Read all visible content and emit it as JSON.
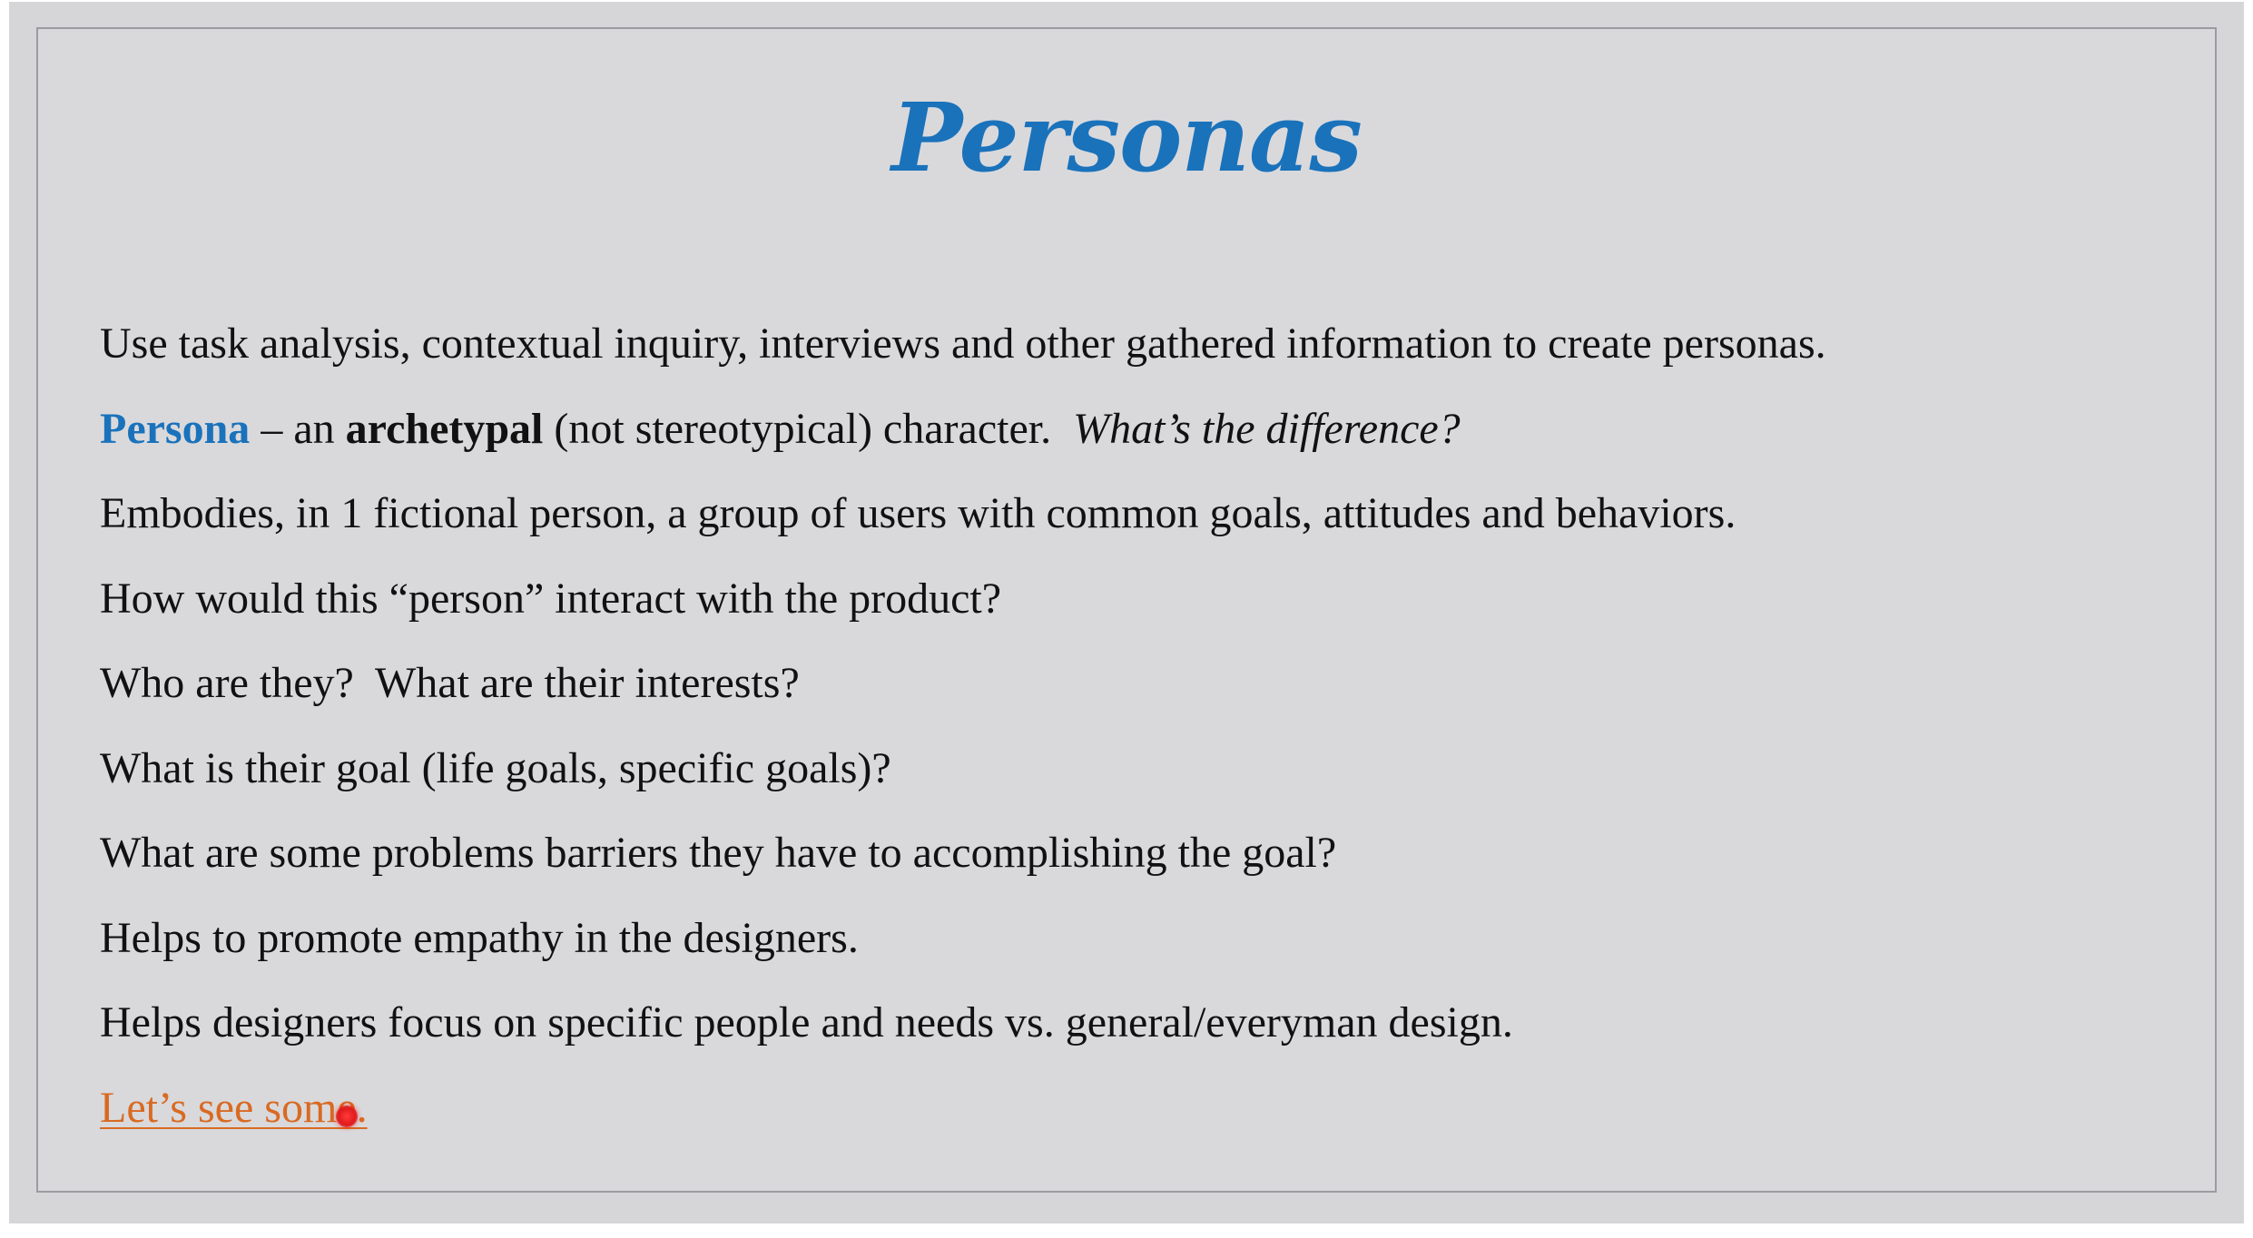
{
  "slide": {
    "title": "Personas",
    "lines": [
      "Use task analysis, contextual inquiry, interviews and other gathered information to create personas.",
      "Embodies, in 1 fictional person, a group of users with common goals, attitudes and behaviors.",
      "How would this “person” interact with the product?",
      "Who are they?  What are their interests?",
      "What is their goal (life goals, specific goals)?",
      "What are some problems barriers they have to accomplishing the goal?",
      "Helps to promote empathy in the designers.",
      "Helps designers focus on specific people and needs vs. general/everyman design."
    ],
    "definition": {
      "term": "Persona",
      "dash_an": " – an ",
      "archetypal": "archetypal",
      "rest": " (not stereotypical) character.  ",
      "question": "What’s the difference?"
    },
    "link_text": "Let’s see some."
  },
  "colors": {
    "accent_blue": "#1a72bb",
    "link_orange": "#d96a22",
    "slide_bg": "#d9d9dc",
    "pointer_red": "#e01a1a"
  }
}
